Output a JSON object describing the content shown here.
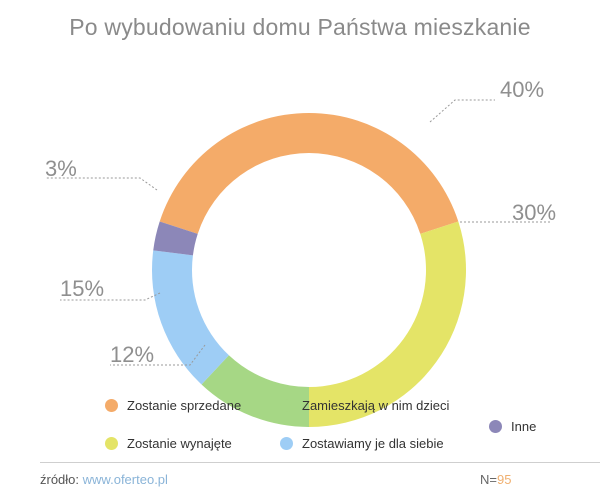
{
  "chart_data": {
    "type": "pie",
    "title": "Po wybudowaniu domu Państwa mieszkanie",
    "slices": [
      {
        "label": "Zostanie sprzedane",
        "value": 40,
        "value_label": "40%",
        "color": "#f4ab69"
      },
      {
        "label": "Zostanie wynajęte",
        "value": 30,
        "value_label": "30%",
        "color": "#e4e467"
      },
      {
        "label": "Zamieszkają w nim dzieci",
        "value": 12,
        "value_label": "12%",
        "color": "#a6d785"
      },
      {
        "label": "Zostawiamy je dla siebie",
        "value": 15,
        "value_label": "15%",
        "color": "#9ecdf5"
      },
      {
        "label": "Inne",
        "value": 3,
        "value_label": "3%",
        "color": "#8c87b8"
      }
    ],
    "legend_placement": "bottom"
  },
  "footer": {
    "source_label": "źródło:",
    "source_url": "www.oferteo.pl",
    "n_label": "N=",
    "n_value": "95"
  }
}
